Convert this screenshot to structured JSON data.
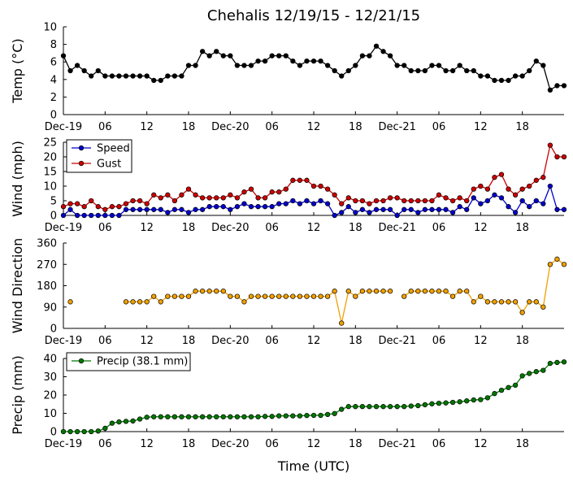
{
  "title": "Chehalis 12/19/15 - 12/21/15",
  "xlabel": "Time (UTC)",
  "x_tick_labels": [
    "Dec-19",
    "06",
    "12",
    "18",
    "Dec-20",
    "06",
    "12",
    "18",
    "Dec-21",
    "06",
    "12",
    "18"
  ],
  "colors": {
    "temp": "#000000",
    "speed": "#0000cc",
    "gust": "#cc0000",
    "dir": "#f0a000",
    "precip": "#007700"
  },
  "chart_data": [
    {
      "type": "line",
      "ylabel": "Temp (°C)",
      "ylim": [
        0,
        10
      ],
      "yticks": [
        0,
        2,
        4,
        6,
        8,
        10
      ],
      "x_hours": [
        0,
        1,
        2,
        3,
        4,
        5,
        6,
        7,
        8,
        9,
        10,
        11,
        12,
        13,
        14,
        15,
        16,
        17,
        18,
        19,
        20,
        21,
        22,
        23,
        24,
        25,
        26,
        27,
        28,
        29,
        30,
        31,
        32,
        33,
        34,
        35,
        36,
        37,
        38,
        39,
        40,
        41,
        42,
        43,
        44,
        45,
        46,
        47,
        48,
        49,
        50,
        51,
        52,
        53,
        54,
        55,
        56,
        57,
        58,
        59,
        60,
        61,
        62,
        63,
        64,
        65,
        66,
        67,
        68,
        69,
        70,
        71,
        72
      ],
      "series": [
        {
          "key": "temp",
          "values": [
            6.7,
            5.0,
            5.6,
            5.0,
            4.4,
            5.0,
            4.4,
            4.4,
            4.4,
            4.4,
            4.4,
            4.4,
            4.4,
            3.9,
            3.9,
            4.4,
            4.4,
            4.4,
            5.6,
            5.6,
            7.2,
            6.7,
            7.2,
            6.7,
            6.7,
            5.6,
            5.6,
            5.6,
            6.1,
            6.1,
            6.7,
            6.7,
            6.7,
            6.1,
            5.6,
            6.1,
            6.1,
            6.1,
            5.6,
            5.0,
            4.4,
            5.0,
            5.6,
            6.7,
            6.7,
            7.8,
            7.2,
            6.7,
            5.6,
            5.6,
            5.0,
            5.0,
            5.0,
            5.6,
            5.6,
            5.0,
            5.0,
            5.6,
            5.0,
            5.0,
            4.4,
            4.4,
            3.9,
            3.9,
            3.9,
            4.4,
            4.4,
            5.0,
            6.1,
            5.6,
            2.8,
            3.3,
            3.3
          ]
        }
      ]
    },
    {
      "type": "line",
      "ylabel": "Wind (mph)",
      "ylim": [
        0,
        25
      ],
      "yticks": [
        0,
        5,
        10,
        15,
        20,
        25
      ],
      "legend": "top-left",
      "x_hours": [
        0,
        1,
        2,
        3,
        4,
        5,
        6,
        7,
        8,
        9,
        10,
        11,
        12,
        13,
        14,
        15,
        16,
        17,
        18,
        19,
        20,
        21,
        22,
        23,
        24,
        25,
        26,
        27,
        28,
        29,
        30,
        31,
        32,
        33,
        34,
        35,
        36,
        37,
        38,
        39,
        40,
        41,
        42,
        43,
        44,
        45,
        46,
        47,
        48,
        49,
        50,
        51,
        52,
        53,
        54,
        55,
        56,
        57,
        58,
        59,
        60,
        61,
        62,
        63,
        64,
        65,
        66,
        67,
        68,
        69,
        70,
        71,
        72
      ],
      "series": [
        {
          "key": "speed",
          "name": "Speed",
          "values": [
            0,
            2,
            0,
            0,
            0,
            0,
            0,
            0,
            0,
            2,
            2,
            2,
            2,
            2,
            2,
            1,
            2,
            2,
            1,
            2,
            2,
            3,
            3,
            3,
            2,
            3,
            4,
            3,
            3,
            3,
            3,
            4,
            4,
            5,
            4,
            5,
            4,
            5,
            4,
            0,
            1,
            3,
            1,
            2,
            1,
            2,
            2,
            2,
            0,
            2,
            2,
            1,
            2,
            2,
            2,
            2,
            1,
            3,
            2,
            6,
            4,
            5,
            7,
            6,
            3,
            1,
            5,
            3,
            5,
            4,
            10,
            2,
            2
          ]
        },
        {
          "key": "gust",
          "name": "Gust",
          "values": [
            3,
            4,
            4,
            3,
            5,
            3,
            2,
            3,
            3,
            4,
            5,
            5,
            4,
            7,
            6,
            7,
            5,
            7,
            9,
            7,
            6,
            6,
            6,
            6,
            7,
            6,
            8,
            9,
            6,
            6,
            8,
            8,
            9,
            12,
            12,
            12,
            10,
            10,
            9,
            7,
            4,
            6,
            5,
            5,
            4,
            5,
            5,
            6,
            6,
            5,
            5,
            5,
            5,
            5,
            7,
            6,
            5,
            6,
            5,
            9,
            10,
            9,
            13,
            14,
            9,
            7,
            9,
            10,
            12,
            13,
            24,
            20,
            20
          ]
        }
      ]
    },
    {
      "type": "line",
      "ylabel": "Wind Direction",
      "ylim": [
        0,
        360
      ],
      "yticks": [
        0,
        90,
        180,
        270,
        360
      ],
      "x_hours": [
        0,
        1,
        2,
        3,
        4,
        5,
        6,
        7,
        8,
        9,
        10,
        11,
        12,
        13,
        14,
        15,
        16,
        17,
        18,
        19,
        20,
        21,
        22,
        23,
        24,
        25,
        26,
        27,
        28,
        29,
        30,
        31,
        32,
        33,
        34,
        35,
        36,
        37,
        38,
        39,
        40,
        41,
        42,
        43,
        44,
        45,
        46,
        47,
        48,
        49,
        50,
        51,
        52,
        53,
        54,
        55,
        56,
        57,
        58,
        59,
        60,
        61,
        62,
        63,
        64,
        65,
        66,
        67,
        68,
        69,
        70,
        71,
        72
      ],
      "series": [
        {
          "key": "dir",
          "values": [
            null,
            112,
            null,
            null,
            null,
            null,
            null,
            null,
            null,
            112,
            112,
            112,
            112,
            135,
            112,
            135,
            135,
            135,
            135,
            157,
            157,
            157,
            157,
            157,
            135,
            135,
            112,
            135,
            135,
            135,
            135,
            135,
            135,
            135,
            135,
            135,
            135,
            135,
            135,
            157,
            22,
            157,
            135,
            157,
            157,
            157,
            157,
            157,
            null,
            135,
            157,
            157,
            157,
            157,
            157,
            157,
            135,
            157,
            157,
            112,
            135,
            112,
            112,
            112,
            112,
            112,
            67,
            112,
            112,
            90,
            270,
            292,
            270
          ]
        }
      ]
    },
    {
      "type": "line",
      "ylabel": "Precip (mm)",
      "ylim": [
        0,
        40
      ],
      "yticks": [
        0,
        10,
        20,
        30,
        40
      ],
      "legend": "top-left",
      "x_hours": [
        0,
        1,
        2,
        3,
        4,
        5,
        6,
        7,
        8,
        9,
        10,
        11,
        12,
        13,
        14,
        15,
        16,
        17,
        18,
        19,
        20,
        21,
        22,
        23,
        24,
        25,
        26,
        27,
        28,
        29,
        30,
        31,
        32,
        33,
        34,
        35,
        36,
        37,
        38,
        39,
        40,
        41,
        42,
        43,
        44,
        45,
        46,
        47,
        48,
        49,
        50,
        51,
        52,
        53,
        54,
        55,
        56,
        57,
        58,
        59,
        60,
        61,
        62,
        63,
        64,
        65,
        66,
        67,
        68,
        69,
        70,
        71,
        72
      ],
      "series": [
        {
          "key": "precip",
          "name": "Precip (38.1 mm)",
          "values": [
            0,
            0,
            0,
            0,
            0,
            0.3,
            1.8,
            4.6,
            5.3,
            5.6,
            5.8,
            6.9,
            7.9,
            8.1,
            8.1,
            8.1,
            8.1,
            8.1,
            8.1,
            8.1,
            8.1,
            8.1,
            8.1,
            8.1,
            8.1,
            8.1,
            8.1,
            8.1,
            8.1,
            8.3,
            8.3,
            8.6,
            8.6,
            8.6,
            8.6,
            8.8,
            8.9,
            8.9,
            9.4,
            9.9,
            12.2,
            13.7,
            13.7,
            13.7,
            13.7,
            13.7,
            13.7,
            13.7,
            13.7,
            13.7,
            14.0,
            14.2,
            14.7,
            15.2,
            15.5,
            15.7,
            16.0,
            16.3,
            16.8,
            17.3,
            17.5,
            18.5,
            20.8,
            22.6,
            24.1,
            25.4,
            30.5,
            31.8,
            32.8,
            33.5,
            37.3,
            37.8,
            38.1
          ]
        }
      ]
    }
  ]
}
